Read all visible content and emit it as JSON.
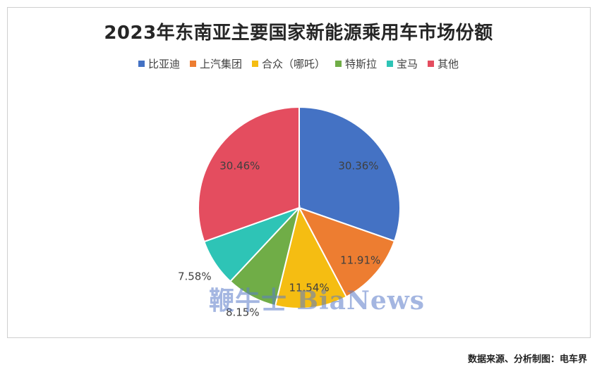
{
  "chart_data": {
    "type": "pie",
    "title": "2023年东南亚主要国家新能源乘用车市场份额",
    "categories": [
      "比亚迪",
      "上汽集团",
      "合众（哪吒）",
      "特斯拉",
      "宝马",
      "其他"
    ],
    "values": [
      30.36,
      11.91,
      11.54,
      8.15,
      7.58,
      30.46
    ],
    "labels": [
      "30.36%",
      "11.91%",
      "11.54%",
      "8.15%",
      "7.58%",
      "30.46%"
    ],
    "colors": [
      "#4472C4",
      "#ED7D31",
      "#F5BD12",
      "#70AD47",
      "#2EC4B6",
      "#E44D5F"
    ],
    "legend_position": "top"
  },
  "footer": "数据来源、分析制图：电车界",
  "watermark": "鞭牛士 BiaNews"
}
